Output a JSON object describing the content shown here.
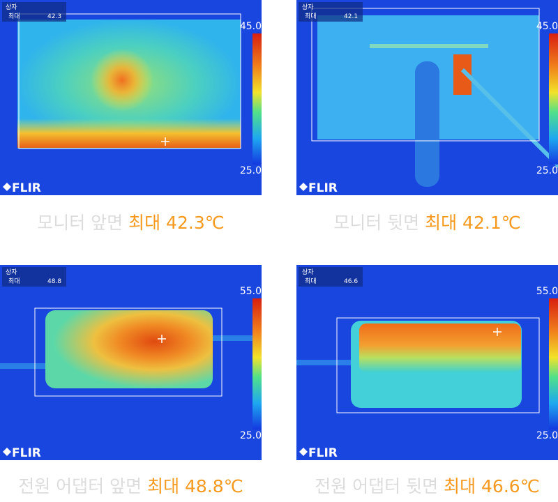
{
  "panels": [
    {
      "box_label": "상자",
      "max_label": "최대",
      "max_value": "42.3",
      "scale_top": "45.0",
      "scale_bottom": "25.0",
      "brand": "FLIR",
      "caption": {
        "label": "모니터 앞면",
        "highlight": "최대 42.3℃"
      }
    },
    {
      "box_label": "상자",
      "max_label": "최대",
      "max_value": "42.1",
      "scale_top": "45.0",
      "scale_bottom": "25.0",
      "brand": "FLIR",
      "caption": {
        "label": "모니터 뒷면",
        "highlight": "최대 42.1℃"
      }
    },
    {
      "box_label": "상자",
      "max_label": "최대",
      "max_value": "48.8",
      "scale_top": "55.0",
      "scale_bottom": "25.0",
      "brand": "FLIR",
      "caption": {
        "label": "전원 어댑터 앞면",
        "highlight": "최대 48.8℃"
      }
    },
    {
      "box_label": "상자",
      "max_label": "최대",
      "max_value": "46.6",
      "scale_top": "55.0",
      "scale_bottom": "25.0",
      "brand": "FLIR",
      "caption": {
        "label": "전원 어댑터 뒷면",
        "highlight": "최대 46.6℃"
      }
    }
  ]
}
